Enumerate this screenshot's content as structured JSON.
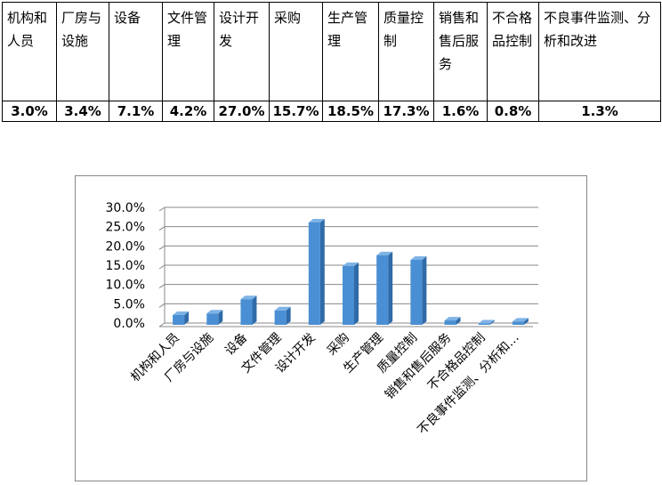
{
  "table": {
    "header": [
      "机构和人员",
      "厂房与设施",
      "设备",
      "文件管理",
      "设计开发",
      "采购",
      "生产管理",
      "质量控制",
      "销售和售后服务",
      "不合格品控制",
      "不良事件监测、分析和改进"
    ],
    "row": [
      "3.0%",
      "3.4%",
      "7.1%",
      "4.2%",
      "27.0%",
      "15.7%",
      "18.5%",
      "17.3%",
      "1.6%",
      "0.8%",
      "1.3%"
    ]
  },
  "chart_data": {
    "type": "bar",
    "categories": [
      "机构和人员",
      "厂房与设施",
      "设备",
      "文件管理",
      "设计开发",
      "采购",
      "生产管理",
      "质量控制",
      "销售和售后服务",
      "不合格品控制",
      "不良事件监测、分析和…"
    ],
    "values": [
      3.0,
      3.4,
      7.1,
      4.2,
      27.0,
      15.7,
      18.5,
      17.3,
      1.6,
      0.8,
      1.3
    ],
    "color": "#4a8fd3",
    "ylim": [
      0,
      30
    ],
    "yticks": [
      {
        "value": 0,
        "label": "0.0%"
      },
      {
        "value": 5,
        "label": "5.0%"
      },
      {
        "value": 10,
        "label": "10.0%"
      },
      {
        "value": 15,
        "label": "15.0%"
      },
      {
        "value": 20,
        "label": "20.0%"
      },
      {
        "value": 25,
        "label": "25.0%"
      },
      {
        "value": 30,
        "label": "30.0%"
      }
    ],
    "grid": true
  }
}
